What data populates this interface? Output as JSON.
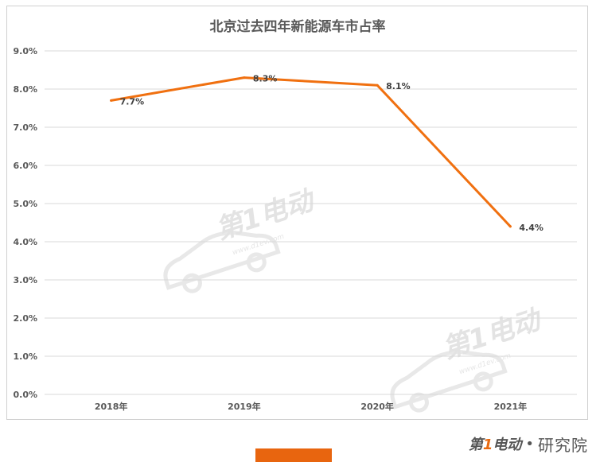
{
  "chart_data": {
    "type": "line",
    "title": "北京过去四年新能源车市占率",
    "categories": [
      "2018年",
      "2019年",
      "2020年",
      "2021年"
    ],
    "series": [
      {
        "values": [
          7.7,
          8.3,
          8.1,
          4.4
        ],
        "color": "#f07010"
      }
    ],
    "data_labels": [
      "7.7%",
      "8.3%",
      "8.1%",
      "4.4%"
    ],
    "ylim": [
      0,
      9
    ],
    "yticks": [
      "0.0%",
      "1.0%",
      "2.0%",
      "3.0%",
      "4.0%",
      "5.0%",
      "6.0%",
      "7.0%",
      "8.0%",
      "9.0%"
    ],
    "grid": true,
    "legend": "none"
  },
  "watermark": {
    "logo_text": "第1电动",
    "url_text": "www.d1ev.com"
  },
  "brand": {
    "logo_prefix": "第",
    "logo_one": "1",
    "logo_suffix": "电动",
    "separator": "•",
    "name": "研究院"
  },
  "colors": {
    "accent": "#f07010",
    "bar": "#e8650f"
  }
}
